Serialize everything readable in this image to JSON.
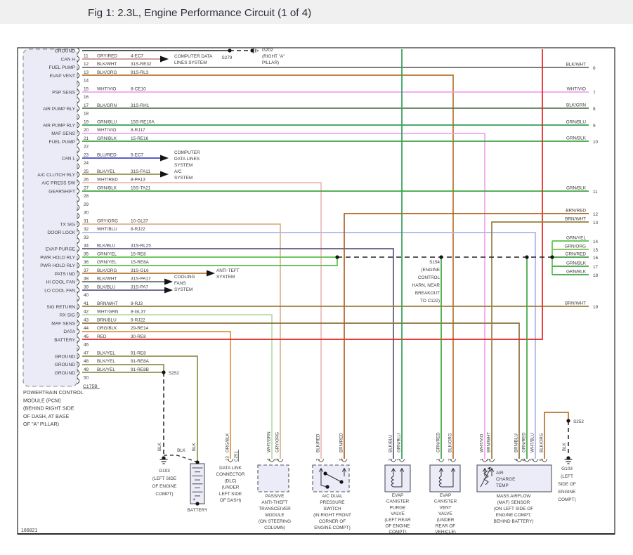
{
  "header": {
    "title": "Fig 1: 2.3L, Engine Performance Circuit (1 of 4)"
  },
  "doc_number": "166821",
  "pcm": {
    "connector": "C175B",
    "caption": [
      "POWERTRAIN CONTROL",
      "MODULE (PCM)",
      "(BEHIND RIGHT SIDE",
      "OF DASH, AT BASE",
      "OF \"A\" PILLAR)"
    ],
    "pins": [
      {
        "n": "",
        "fn": "GROUND",
        "color": "BLK",
        "circuit": ""
      },
      {
        "n": "11",
        "fn": "CAN H",
        "color": "GRY/RED",
        "circuit": "4-EC7"
      },
      {
        "n": "12",
        "fn": "FUEL PUMP",
        "color": "BLK/WHT",
        "circuit": "31S-RE32"
      },
      {
        "n": "13",
        "fn": "EVAP VENT",
        "color": "BLK/ORG",
        "circuit": "91S-RL3"
      },
      {
        "n": "14",
        "fn": "",
        "color": "",
        "circuit": ""
      },
      {
        "n": "15",
        "fn": "PSP SENS",
        "color": "WHT/VIO",
        "circuit": "8-CE10"
      },
      {
        "n": "16",
        "fn": "",
        "color": "",
        "circuit": ""
      },
      {
        "n": "17",
        "fn": "AIR PUMP RLY",
        "color": "BLK/GRN",
        "circuit": "31S-RH1"
      },
      {
        "n": "18",
        "fn": "",
        "color": "",
        "circuit": ""
      },
      {
        "n": "19",
        "fn": "AIR PUMP RLY",
        "color": "GRN/BLU",
        "circuit": "15S-RE10A"
      },
      {
        "n": "20",
        "fn": "MAF SENS",
        "color": "WHT/VIO",
        "circuit": "8-RJ17"
      },
      {
        "n": "21",
        "fn": "FUEL PUMP",
        "color": "GRN/BLK",
        "circuit": "15-RE16"
      },
      {
        "n": "22",
        "fn": "",
        "color": "",
        "circuit": ""
      },
      {
        "n": "23",
        "fn": "CAN L",
        "color": "BLU/RED",
        "circuit": "5-EC7"
      },
      {
        "n": "24",
        "fn": "",
        "color": "",
        "circuit": ""
      },
      {
        "n": "25",
        "fn": "A/C CLUTCH RLY",
        "color": "BLK/YEL",
        "circuit": "31S-FA11"
      },
      {
        "n": "26",
        "fn": "A/C PRESS SW",
        "color": "WHT/RED",
        "circuit": "8-PA13"
      },
      {
        "n": "27",
        "fn": "GEARSHIFT",
        "color": "GRN/BLK",
        "circuit": "15S-TA21"
      },
      {
        "n": "28",
        "fn": "",
        "color": "",
        "circuit": ""
      },
      {
        "n": "29",
        "fn": "",
        "color": "",
        "circuit": ""
      },
      {
        "n": "30",
        "fn": "",
        "color": "",
        "circuit": ""
      },
      {
        "n": "31",
        "fn": "TX SIG",
        "color": "GRY/ORG",
        "circuit": "10-GL37"
      },
      {
        "n": "32",
        "fn": "DOOR LOCK",
        "color": "WHT/BLU",
        "circuit": "8-RJ22"
      },
      {
        "n": "33",
        "fn": "",
        "color": "",
        "circuit": ""
      },
      {
        "n": "34",
        "fn": "EVAP PURGE",
        "color": "BLK/BLU",
        "circuit": "31S-RL25"
      },
      {
        "n": "35",
        "fn": "PWR HOLD RLY",
        "color": "GRN/YEL",
        "circuit": "15-RE8"
      },
      {
        "n": "36",
        "fn": "PWR HOLD RLY",
        "color": "GRN/YEL",
        "circuit": "15-RE8A"
      },
      {
        "n": "37",
        "fn": "PATS IND",
        "color": "BLK/ORG",
        "circuit": "31S-GL6"
      },
      {
        "n": "38",
        "fn": "HI COOL FAN",
        "color": "BLK/WHT",
        "circuit": "31S-PA17"
      },
      {
        "n": "39",
        "fn": "LO COOL FAN",
        "color": "BLK/BLU",
        "circuit": "31S-PA7"
      },
      {
        "n": "40",
        "fn": "",
        "color": "",
        "circuit": ""
      },
      {
        "n": "41",
        "fn": "SIG RETURN",
        "color": "BRN/WHT",
        "circuit": "9-RJ3"
      },
      {
        "n": "42",
        "fn": "RX SIG",
        "color": "WHT/GRN",
        "circuit": "8-GL37"
      },
      {
        "n": "43",
        "fn": "MAF SENS",
        "color": "BRN/BLU",
        "circuit": "9-RJ22"
      },
      {
        "n": "44",
        "fn": "DATA",
        "color": "ORG/BLK",
        "circuit": "29-RE14"
      },
      {
        "n": "45",
        "fn": "BATTERY",
        "color": "RED",
        "circuit": "30-RE8"
      },
      {
        "n": "46",
        "fn": "",
        "color": "",
        "circuit": ""
      },
      {
        "n": "47",
        "fn": "GROUND",
        "color": "BLK/YEL",
        "circuit": "91-RE8"
      },
      {
        "n": "48",
        "fn": "GROUND",
        "color": "BLK/YEL",
        "circuit": "91-RE8A"
      },
      {
        "n": "49",
        "fn": "GROUND",
        "color": "BLK/YEL",
        "circuit": "91-RE8B"
      },
      {
        "n": "50",
        "fn": "",
        "color": "",
        "circuit": ""
      }
    ]
  },
  "right_edge_wires": [
    {
      "num": "6",
      "color": "BLK/WHT"
    },
    {
      "num": "7",
      "color": "WHT/VIO"
    },
    {
      "num": "8",
      "color": "BLK/GRN"
    },
    {
      "num": "9",
      "color": "GRN/BLU"
    },
    {
      "num": "10",
      "color": "GRN/BLK"
    },
    {
      "num": "11",
      "color": "GRN/BLK"
    },
    {
      "num": "12",
      "color": "BRN/RED"
    },
    {
      "num": "13",
      "color": "BRN/WHT"
    },
    {
      "num": "14",
      "color": "GRN/YEL"
    },
    {
      "num": "15",
      "color": "GRN/ORG"
    },
    {
      "num": "16",
      "color": "GRN/RED"
    },
    {
      "num": "17",
      "color": "GRN/BLK"
    },
    {
      "num": "18",
      "color": "GRN/BLK"
    },
    {
      "num": "19",
      "color": "BRN/WHT"
    }
  ],
  "system_refs": {
    "can_h": [
      "COMPUTER DATA",
      "LINES SYSTEM"
    ],
    "can_l": [
      "COMPUTER",
      "DATA LINES",
      "SYSTEM"
    ],
    "ac": [
      "A/C",
      "SYSTEM"
    ],
    "pats": [
      "ANTI-TEFT",
      "SYSTEM"
    ],
    "cooling": [
      "COOLING",
      "FANS",
      "SYSTEM"
    ]
  },
  "splices": {
    "s279": "S279",
    "s252": "S252",
    "s154": [
      "S154",
      "(ENGINE",
      "CONTROL",
      "HARN, NEAR",
      "BREAKOUT",
      "TO C122)"
    ]
  },
  "grounds": {
    "g202": [
      "G202",
      "(RIGHT \"A\"",
      "PILLAR)"
    ],
    "g103_left": [
      "G103",
      "(LEFT SIDE",
      "OF ENGINE",
      "COMPT)"
    ],
    "g103_right": [
      "G103",
      "(LEFT",
      "SIDE OF",
      "ENGINE",
      "COMPT)"
    ]
  },
  "blk_tag": "BLK",
  "components": {
    "battery": {
      "label": "BATTERY"
    },
    "dlc": {
      "pin": "13",
      "connector": "C251",
      "wire": "ORG/BLK",
      "caption": [
        "DATA LINK",
        "CONNECTOR",
        "(DLC)",
        "(UNDER",
        "LEFT SIDE",
        "OF DASH)"
      ]
    },
    "pats_module": {
      "pins": [
        "4",
        "3"
      ],
      "wires": [
        "WHT/GRN",
        "GRY/ORG"
      ],
      "caption": [
        "PASSIVE",
        "ANTI-THEFT",
        "TRANSCEIVER",
        "MODULE",
        "(ON STEERING",
        "COLUMN)"
      ]
    },
    "ac_switch": {
      "pins": [
        "2",
        "3"
      ],
      "wires": [
        "BLK/RED",
        "BRN/RED"
      ],
      "caption": [
        "A/C DUAL",
        "PRESSURE",
        "SWITCH",
        "(IN RIGHT FRONT",
        "CORNER OF",
        "ENGINE COMPT)"
      ]
    },
    "purge_valve": {
      "pins": [
        "2",
        "1"
      ],
      "wires": [
        "BLK/BLU",
        "GRN/BLU"
      ],
      "caption": [
        "EVAP",
        "CANISTER",
        "PURGE",
        "VALVE",
        "(LEFT REAR",
        "OF ENGINE",
        "COMPT)"
      ]
    },
    "vent_valve": {
      "pins": [
        "1",
        "2"
      ],
      "wires": [
        "GRN/RED",
        "BLK/ORG"
      ],
      "caption": [
        "EVAP",
        "CANISTER",
        "VENT",
        "VALVE",
        "(UNDER",
        "REAR OF",
        "VEHICLE)"
      ]
    },
    "maf": {
      "pins": [
        "1",
        "2",
        "4",
        "6",
        "3",
        "5"
      ],
      "wires": [
        "WHT/VIO",
        "BRN/WHT",
        "BRN/BLU",
        "GRN/RED",
        "WHT/BLU",
        "BLK/ORG"
      ],
      "inner_label": [
        "AIR",
        "CHARGE",
        "TEMP"
      ],
      "caption": [
        "MASS AIRFLOW",
        "(MAF) SENSOR",
        "(ON LEFT SIDE OF",
        "ENGINE COMPT,",
        "BEHIND BATTERY)"
      ]
    }
  },
  "wire_colors": {
    "BLK": "#3f3f3f",
    "GRY/RED": "#c98f8f",
    "BLK/WHT": "#6b6b6b",
    "BLK/ORG": "#b9742e",
    "WHT/VIO": "#f0a2ee",
    "BLK/GRN": "#5d7a55",
    "GRN/BLU": "#2f9f55",
    "GRN/BLK": "#3fa43f",
    "BLU/RED": "#4545cc",
    "BLK/YEL": "#93904e",
    "WHT/RED": "#f2b8b8",
    "GRY/ORG": "#d9b28a",
    "WHT/BLU": "#aeb6ec",
    "BLK/BLU": "#5b5b82",
    "GRN/YEL": "#57c04b",
    "GRN/ORG": "#79bf4e",
    "GRN/RED": "#3fa43f",
    "BRN/WHT": "#97803a",
    "WHT/GRN": "#b9dca6",
    "BRN/BLU": "#89713d",
    "ORG/BLK": "#e6913c",
    "RED": "#e42222",
    "BRN/RED": "#b4611f",
    "titlebar_bg": "#f0f0f1",
    "title_text": "#30303c",
    "pcm_fill": "#ebebf7",
    "component_fill": "#ececf8"
  }
}
